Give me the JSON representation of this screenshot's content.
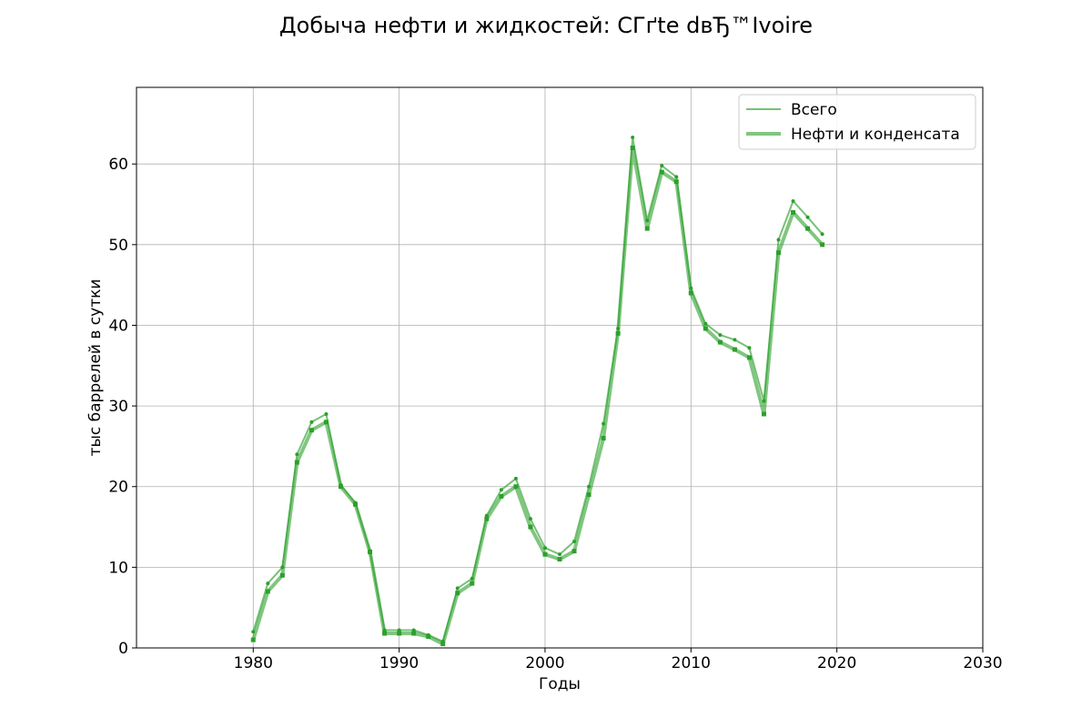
{
  "chart_data": {
    "type": "line",
    "title": "Добыча нефти и жидкостей: CГґte dвЂ™Ivoire",
    "xlabel": "Годы",
    "ylabel": "тыс баррелей в сутки",
    "xlim": [
      1972,
      2030
    ],
    "ylim": [
      0,
      69.5
    ],
    "xticks": [
      1980,
      1990,
      2000,
      2010,
      2020,
      2030
    ],
    "yticks": [
      0,
      10,
      20,
      30,
      40,
      50,
      60
    ],
    "grid": true,
    "legend_position": "top-right",
    "colors": {
      "line": "#2ca02c"
    },
    "x": [
      1980,
      1981,
      1982,
      1983,
      1984,
      1985,
      1986,
      1987,
      1988,
      1989,
      1990,
      1991,
      1992,
      1993,
      1994,
      1995,
      1996,
      1997,
      1998,
      1999,
      2000,
      2001,
      2002,
      2003,
      2004,
      2005,
      2006,
      2007,
      2008,
      2009,
      2010,
      2011,
      2012,
      2013,
      2014,
      2015,
      2016,
      2017,
      2018,
      2019
    ],
    "series": [
      {
        "name": "Всего",
        "values": [
          2,
          8,
          10,
          24,
          28,
          29,
          20.2,
          18,
          12,
          2.2,
          2.2,
          2.2,
          1.6,
          0.8,
          7.4,
          8.6,
          16.4,
          19.6,
          21,
          16,
          12.4,
          11.6,
          13.2,
          20,
          27.8,
          39.6,
          63.3,
          53,
          59.8,
          58.4,
          44.6,
          40.2,
          38.8,
          38.2,
          37.2,
          30.6,
          50.6,
          55.4,
          53.4,
          51.3
        ]
      },
      {
        "name": "Нефти и конденсата",
        "values": [
          1,
          7,
          9,
          23,
          27,
          28,
          20,
          17.8,
          11.9,
          1.8,
          1.8,
          1.8,
          1.4,
          0.5,
          6.8,
          8,
          16,
          18.8,
          20,
          15,
          11.6,
          11,
          12,
          19,
          26,
          39,
          62,
          52,
          59,
          57.8,
          44,
          39.6,
          37.9,
          37,
          36,
          29,
          49,
          54,
          52,
          50
        ]
      }
    ]
  }
}
